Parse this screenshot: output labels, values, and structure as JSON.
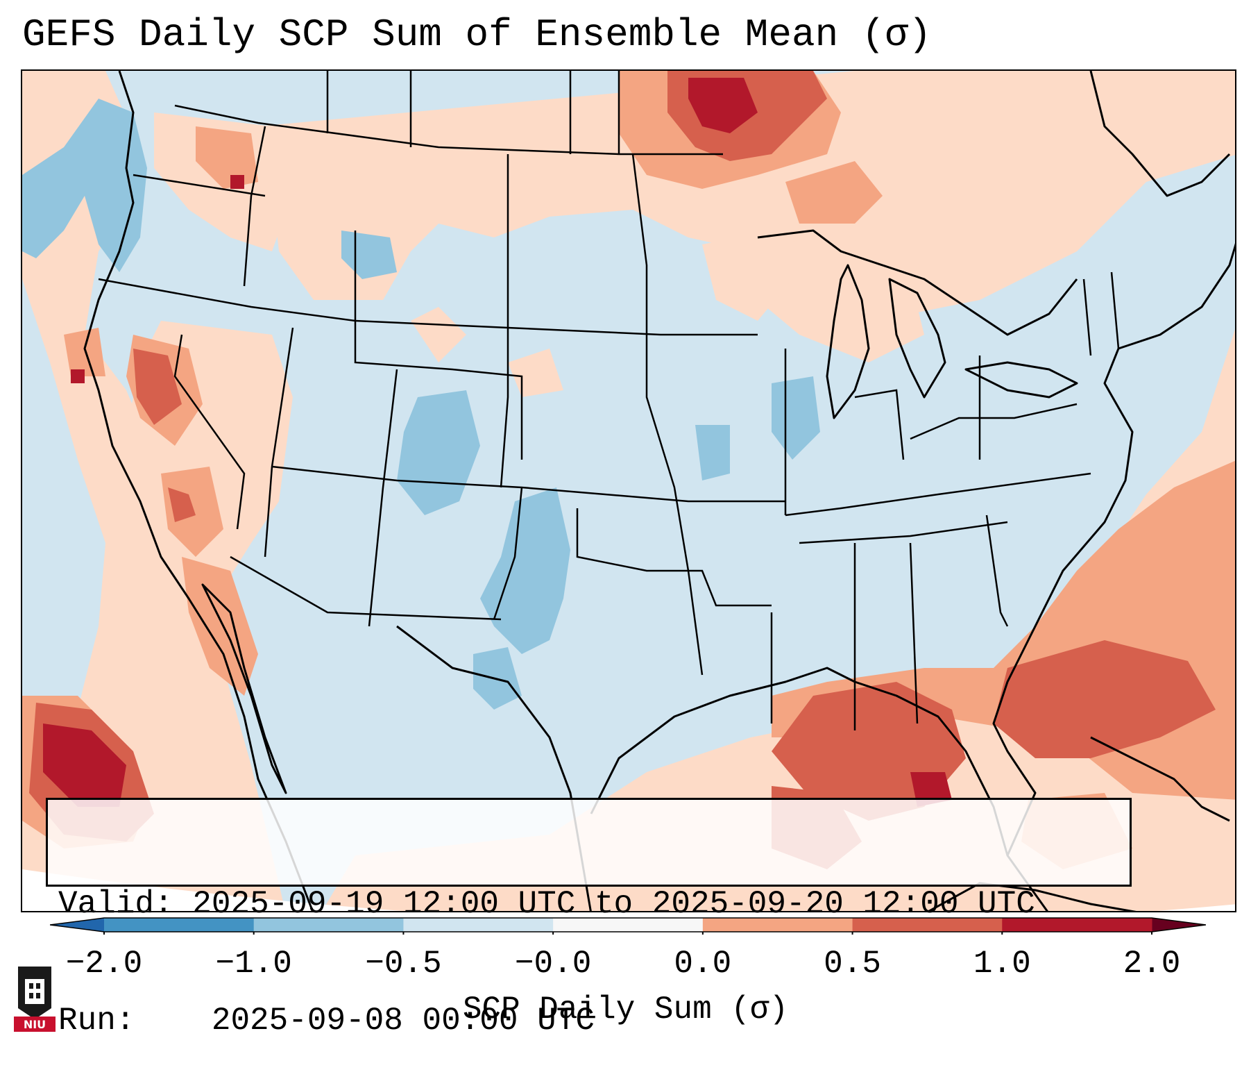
{
  "title": "GEFS Daily SCP Sum of Ensemble Mean (σ)",
  "info": {
    "valid_label": "Valid:",
    "valid_value": "2025-09-19 12:00 UTC to 2025-09-20 12:00 UTC",
    "run_label": "Run:",
    "run_value": "2025-09-08 00:00 UTC"
  },
  "colorbar": {
    "label": "SCP Daily Sum (σ)",
    "ticks": [
      "−2.0",
      "−1.0",
      "−0.5",
      "−0.0",
      "0.0",
      "0.5",
      "1.0",
      "2.0"
    ],
    "colors": [
      "#4393c3",
      "#92c5de",
      "#d1e5f0",
      "#f7f7f7",
      "#fddbc7",
      "#f4a582",
      "#d6604d",
      "#b2182b"
    ],
    "under_color": "#2166ac",
    "over_color": "#67001f"
  },
  "legend_icon": "niu-logo",
  "logo_text": "NIU"
}
